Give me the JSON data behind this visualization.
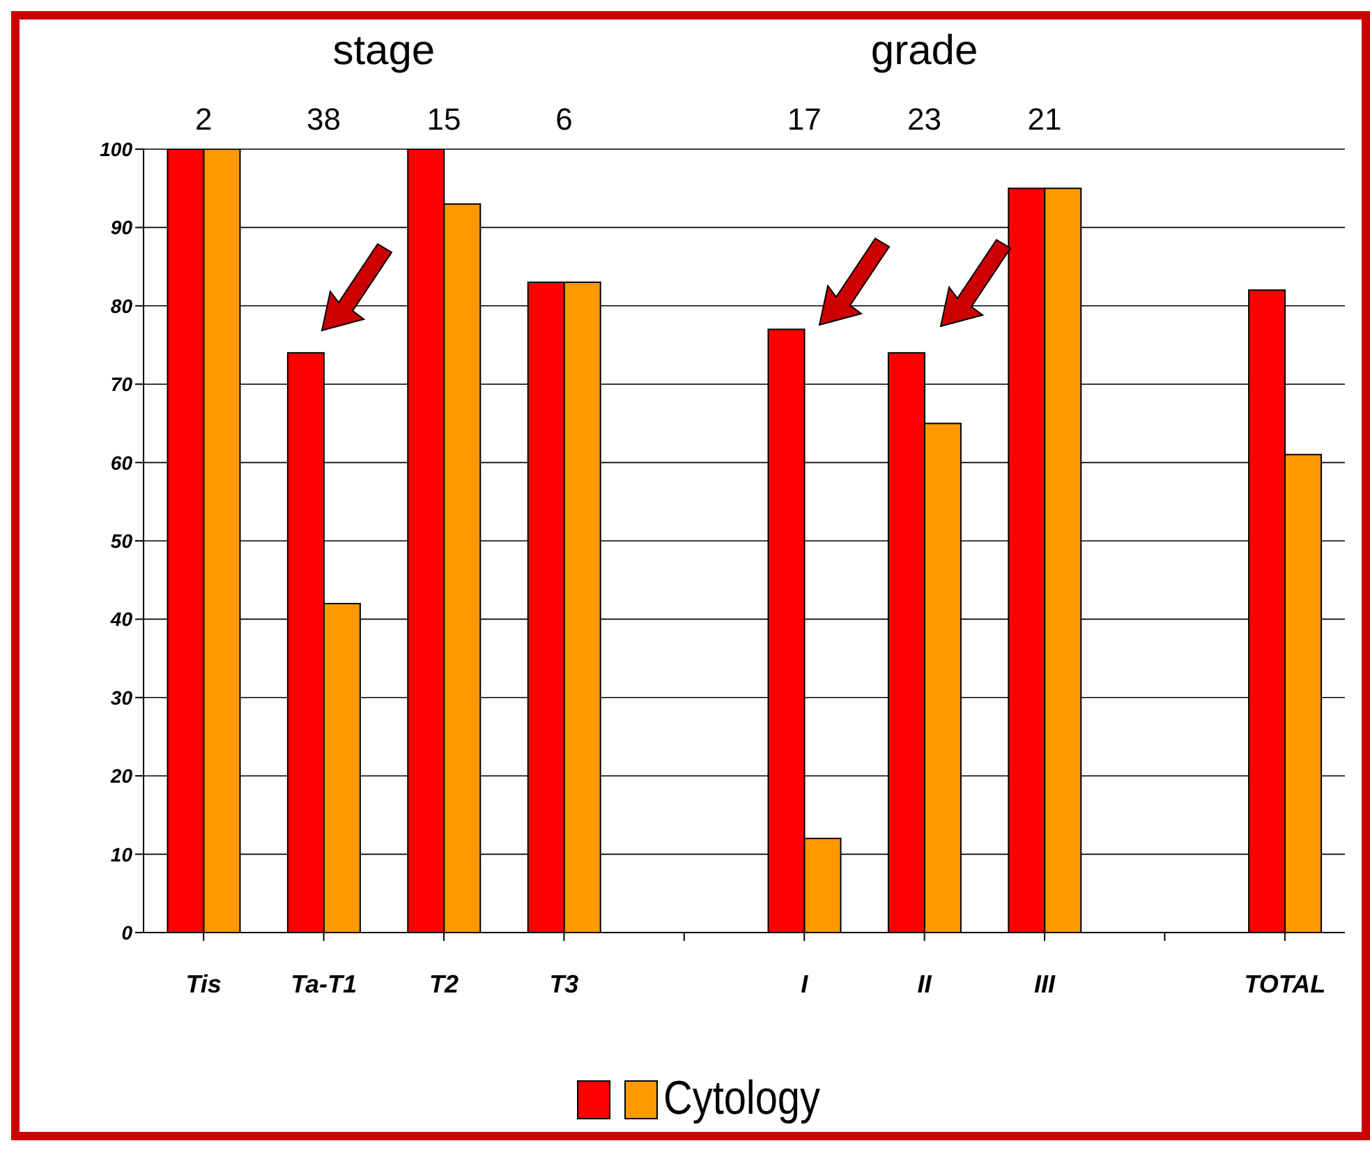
{
  "chart_data": {
    "type": "bar",
    "categories": [
      "Tis",
      "Ta-T1",
      "T2",
      "T3",
      null,
      "I",
      "II",
      "III",
      null,
      "TOTAL"
    ],
    "series": [
      {
        "color": "#ff0000",
        "values": [
          100,
          74,
          100,
          83,
          null,
          77,
          74,
          95,
          null,
          82
        ]
      },
      {
        "name": "Cytology",
        "color": "#ff9900",
        "values": [
          100,
          42,
          93,
          83,
          null,
          12,
          65,
          95,
          null,
          61
        ]
      }
    ],
    "ylim": [
      0,
      100
    ],
    "yticks": [
      0,
      10,
      20,
      30,
      40,
      50,
      60,
      70,
      80,
      90,
      100
    ],
    "grid": "y",
    "legend": "bottom",
    "annotations": [
      "stage",
      "grade",
      "2",
      "38",
      "15",
      "6",
      "17",
      "23",
      "21"
    ]
  }
}
